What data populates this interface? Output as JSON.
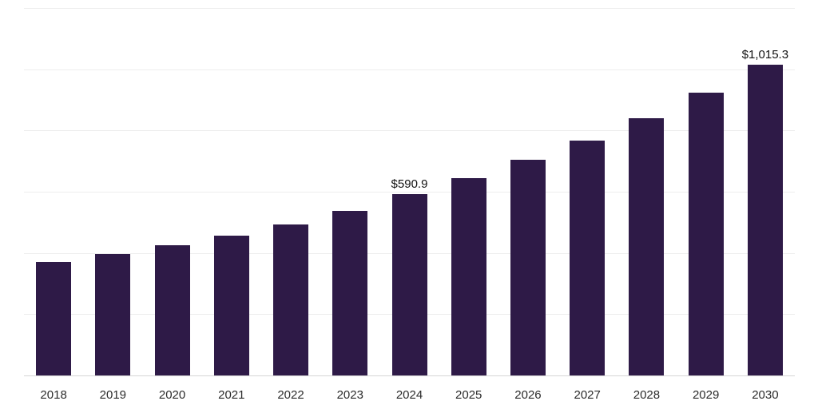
{
  "chart_data": {
    "type": "bar",
    "title": "",
    "xlabel": "",
    "ylabel": "",
    "categories": [
      "2018",
      "2019",
      "2020",
      "2021",
      "2022",
      "2023",
      "2024",
      "2025",
      "2026",
      "2027",
      "2028",
      "2029",
      "2030"
    ],
    "values": [
      370.2,
      395.4,
      424.6,
      456.8,
      492.3,
      538.6,
      590.9,
      645.0,
      703.5,
      766.4,
      840.2,
      922.7,
      1015.3
    ],
    "value_labels": {
      "2024": "$590.9",
      "2030": "$1,015.3"
    },
    "ylim": [
      0,
      1200
    ],
    "gridline_step": 200,
    "grid": true,
    "legend": "none",
    "bar_color": "#2e1a47",
    "gridline_color": "#ededed",
    "axis_line_color": "#d6d6d6",
    "tick_label_color": "#2b2b2b",
    "value_label_color": "#111111"
  }
}
